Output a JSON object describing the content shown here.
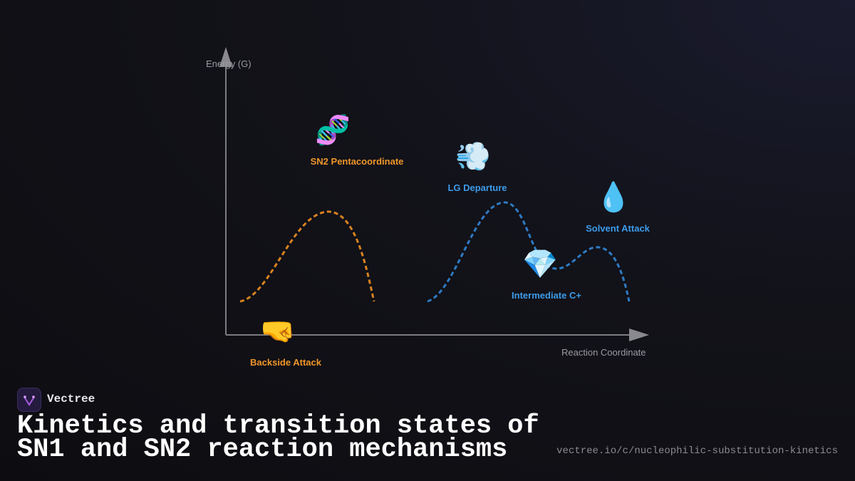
{
  "axes": {
    "y_label": "Energy (G)",
    "x_label": "Reaction Coordinate"
  },
  "nodes": [
    {
      "icon": "🧬",
      "label": "SN2 Pentacoordinate"
    },
    {
      "icon": "💨",
      "label": "LG Departure"
    },
    {
      "icon": "💧",
      "label": "Solvent Attack"
    },
    {
      "icon": "💎",
      "label": "Intermediate C+"
    },
    {
      "icon": "🤜",
      "label": "Backside Attack"
    }
  ],
  "brand": {
    "name": "Vectree"
  },
  "title": "Kinetics and transition states of SN1 and SN2 reaction mechanisms",
  "url": "vectree.io/c/nucleophilic-substitution-kinetics"
}
